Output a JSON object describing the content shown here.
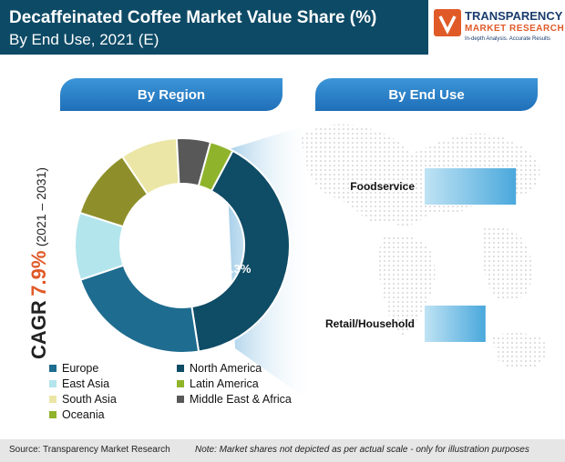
{
  "header": {
    "title": "Decaffeinated Coffee Market Value Share (%)",
    "subtitle": "By End Use, 2021 (E)"
  },
  "logo": {
    "line1": "TRANSPARENCY",
    "line2": "MARKET RESEARCH",
    "line3": "In-depth Analysis. Accurate Results"
  },
  "tabs": {
    "region": "By Region",
    "end_use": "By End Use"
  },
  "cagr": {
    "label": "CAGR",
    "value": "7.9%",
    "period": "(2021 – 2031)"
  },
  "colors": {
    "header_bg": "#0d4a66",
    "accent_orange": "#e05a28",
    "pill_blue": "#2a83c8"
  },
  "chart_data": [
    {
      "type": "donut",
      "series": [
        {
          "name": "North America",
          "value": 39.3,
          "color": "#0f4c66",
          "label": "39.3%"
        },
        {
          "name": "Europe",
          "value": 22,
          "color": "#1e6c8f"
        },
        {
          "name": "East Asia",
          "value": 10,
          "color": "#b3e5ec"
        },
        {
          "name": "South Asia",
          "value": 10.5,
          "color": "#8e8f2a"
        },
        {
          "name": "Middle East & Africa",
          "value": 8.5,
          "color": "#ece6a6"
        },
        {
          "name": "Latin America",
          "value": 5,
          "color": "#585858"
        },
        {
          "name": "Oceania",
          "value": 3.5,
          "color": "#8fb42b"
        }
      ],
      "legend": [
        {
          "name": "Europe",
          "color": "#1e6c8f"
        },
        {
          "name": "North America",
          "color": "#0f4c66"
        },
        {
          "name": "East Asia",
          "color": "#b3e5ec"
        },
        {
          "name": "Latin America",
          "color": "#8fb42b"
        },
        {
          "name": "South Asia",
          "color": "#ece6a6"
        },
        {
          "name": "Middle East & Africa",
          "color": "#585858"
        },
        {
          "name": "Oceania",
          "color": "#8fb42b"
        }
      ],
      "legend_placement": "bottom"
    },
    {
      "type": "bar",
      "orientation": "horizontal",
      "categories": [
        "Foodservice",
        "Retail/Household"
      ],
      "values": [
        60,
        40
      ]
    }
  ],
  "footer": {
    "source": "Source: Transparency Market Research",
    "note": "Note: Market shares not depicted as per actual scale - only for illustration purposes"
  }
}
